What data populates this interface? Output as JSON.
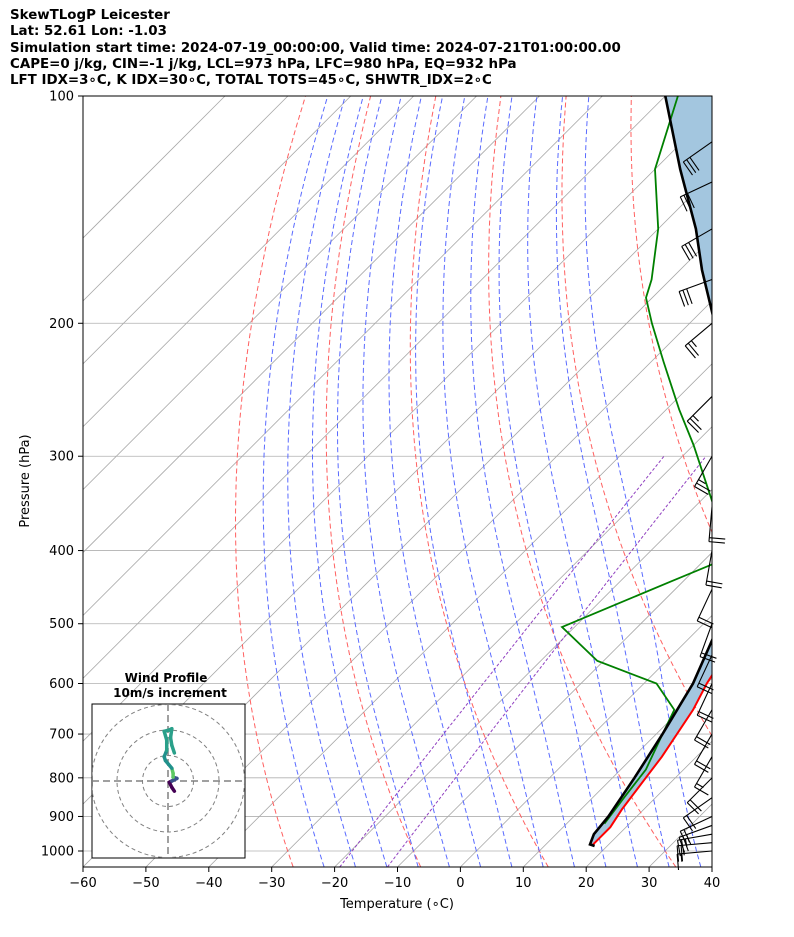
{
  "header": {
    "line1": "SkewTLogP Leicester",
    "line2": "Lat: 52.61   Lon: -1.03",
    "line3": "Simulation start time: 2024-07-19_00:00:00, Valid time: 2024-07-21T01:00:00.00",
    "line4": "CAPE=0 j/kg, CIN=-1 j/kg, LCL=973 hPa, LFC=980 hPa, EQ=932 hPa",
    "line5": "LFT IDX=3∘C, K IDX=30∘C, TOTAL TOTS=45∘C, SHWTR_IDX=2∘C"
  },
  "colors": {
    "temperature": "#ff0000",
    "dewpoint": "#008000",
    "parcel": "#000000",
    "cape_fill": "#a3c6df",
    "dry_adiabats": "#ff6060",
    "moist_adiabats": "#5a6bff",
    "mixing_ratio": "#9040c0",
    "isotherms": "#a8a8a8",
    "isobars": "#b0b0b0"
  },
  "chart_data": {
    "type": "skewt",
    "xlabel": "Temperature (∘C)",
    "ylabel": "Pressure (hPa)",
    "xlim": [
      -60,
      40
    ],
    "ylim": [
      1050,
      100
    ],
    "y_scale": "log",
    "skew": true,
    "grid": true,
    "xticks": [
      -60,
      -50,
      -40,
      -30,
      -20,
      -10,
      0,
      10,
      20,
      30,
      40
    ],
    "yticks": [
      1000,
      900,
      800,
      700,
      600,
      500,
      400,
      300,
      200,
      100
    ],
    "series": [
      {
        "key": "temperature",
        "points": [
          [
            17.5,
            980
          ],
          [
            17.5,
            930
          ],
          [
            16.5,
            880
          ],
          [
            15.3,
            800
          ],
          [
            14.5,
            750
          ],
          [
            12.0,
            650
          ],
          [
            10.0,
            600
          ],
          [
            8.0,
            540
          ],
          [
            6.0,
            500
          ],
          [
            0.0,
            450
          ],
          [
            -5.0,
            400
          ],
          [
            -10.0,
            350
          ],
          [
            -14.0,
            310
          ],
          [
            -16.0,
            290
          ],
          [
            -18.0,
            260
          ],
          [
            -23.0,
            230
          ],
          [
            -30.0,
            200
          ],
          [
            -36.0,
            180
          ],
          [
            -40.0,
            165
          ],
          [
            -45.0,
            150
          ],
          [
            -51.0,
            140
          ],
          [
            -54.0,
            130
          ],
          [
            -58.0,
            115
          ],
          [
            -60.0,
            100
          ]
        ]
      },
      {
        "key": "dewpoint",
        "points": [
          [
            16.0,
            920
          ],
          [
            15.0,
            850
          ],
          [
            14.0,
            780
          ],
          [
            11.0,
            700
          ],
          [
            9.0,
            650
          ],
          [
            2.0,
            600
          ],
          [
            -11.0,
            560
          ],
          [
            -22.0,
            505
          ],
          [
            -12.0,
            440
          ],
          [
            -5.0,
            400
          ],
          [
            -15.0,
            360
          ],
          [
            -30.0,
            290
          ],
          [
            -38.0,
            260
          ],
          [
            -48.0,
            225
          ],
          [
            -56.0,
            200
          ],
          [
            -61.0,
            185
          ],
          [
            -63.0,
            175
          ],
          [
            -70.0,
            150
          ],
          [
            -80.0,
            125
          ],
          [
            -88.0,
            100
          ]
        ]
      },
      {
        "key": "parcel",
        "points": [
          [
            18.0,
            985
          ],
          [
            17.0,
            980
          ],
          [
            16.0,
            950
          ],
          [
            15.5,
            900
          ],
          [
            13.5,
            800
          ],
          [
            11.0,
            700
          ],
          [
            7.8,
            600
          ],
          [
            2.5,
            500
          ],
          [
            -6.5,
            400
          ],
          [
            -21.5,
            300
          ],
          [
            -32.0,
            250
          ],
          [
            -46.0,
            200
          ],
          [
            -56.5,
            170
          ],
          [
            -64.0,
            150
          ],
          [
            -76.0,
            125
          ],
          [
            -90.0,
            100
          ]
        ]
      }
    ],
    "wind_barbs": [
      {
        "p": 1000,
        "spd": 15,
        "dir": 265
      },
      {
        "p": 975,
        "spd": 20,
        "dir": 265
      },
      {
        "p": 950,
        "spd": 25,
        "dir": 260
      },
      {
        "p": 925,
        "spd": 25,
        "dir": 250
      },
      {
        "p": 900,
        "spd": 20,
        "dir": 245
      },
      {
        "p": 850,
        "spd": 20,
        "dir": 235
      },
      {
        "p": 800,
        "spd": 20,
        "dir": 225
      },
      {
        "p": 750,
        "spd": 15,
        "dir": 210
      },
      {
        "p": 700,
        "spd": 20,
        "dir": 210
      },
      {
        "p": 650,
        "spd": 20,
        "dir": 210
      },
      {
        "p": 600,
        "spd": 20,
        "dir": 205
      },
      {
        "p": 550,
        "spd": 20,
        "dir": 205
      },
      {
        "p": 500,
        "spd": 20,
        "dir": 200
      },
      {
        "p": 450,
        "spd": 20,
        "dir": 205
      },
      {
        "p": 400,
        "spd": 20,
        "dir": 190
      },
      {
        "p": 350,
        "spd": 20,
        "dir": 185
      },
      {
        "p": 300,
        "spd": 25,
        "dir": 210
      },
      {
        "p": 250,
        "spd": 25,
        "dir": 225
      },
      {
        "p": 200,
        "spd": 25,
        "dir": 230
      },
      {
        "p": 175,
        "spd": 30,
        "dir": 250
      },
      {
        "p": 150,
        "spd": 30,
        "dir": 240
      },
      {
        "p": 130,
        "spd": 30,
        "dir": 245
      },
      {
        "p": 115,
        "spd": 30,
        "dir": 235
      }
    ],
    "hodograph": {
      "title": "Wind Profile",
      "subtitle": "10m/s increment",
      "rings_ms": [
        10,
        20,
        30
      ],
      "points": [
        [
          2.5,
          -4.0
        ],
        [
          1.5,
          -2.5
        ],
        [
          0.5,
          -0.5
        ],
        [
          1.5,
          0.0
        ],
        [
          3.5,
          1.0
        ],
        [
          2.0,
          1.5
        ],
        [
          2.0,
          3.0
        ],
        [
          1.5,
          5.0
        ],
        [
          -1.0,
          8.0
        ],
        [
          -1.5,
          9.5
        ],
        [
          -0.5,
          12.0
        ],
        [
          -0.5,
          16.0
        ],
        [
          -1.5,
          19.5
        ],
        [
          0.5,
          20.0
        ],
        [
          1.5,
          20.5
        ],
        [
          1.0,
          17.0
        ],
        [
          1.5,
          14.0
        ],
        [
          2.5,
          11.0
        ]
      ]
    }
  }
}
